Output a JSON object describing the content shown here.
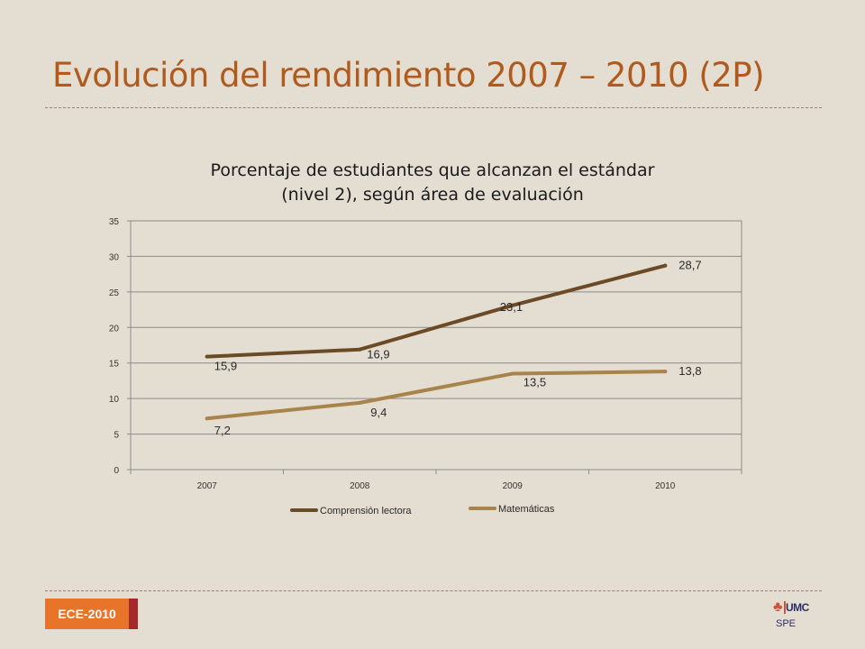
{
  "slide": {
    "title": "Evolución del rendimiento 2007 – 2010 (2P)",
    "badge": "ECE-2010",
    "logo_text": "UMC",
    "logo_sub": "SPE"
  },
  "colors": {
    "title": "#b05a1e",
    "series": [
      "#6b4a26",
      "#a8834a"
    ],
    "badge_bg": "#e8742a",
    "badge_edge": "#a5282a"
  },
  "chart_data": {
    "type": "line",
    "title": "Porcentaje de estudiantes que alcanzan el estándar (nivel 2), según área de evaluación",
    "title_lines": [
      "Porcentaje de estudiantes que alcanzan el estándar",
      "(nivel 2), según área de evaluación"
    ],
    "categories": [
      "2007",
      "2008",
      "2009",
      "2010"
    ],
    "series": [
      {
        "name": "Comprensión lectora",
        "values": [
          15.9,
          16.9,
          23.1,
          28.7
        ],
        "labels": [
          "15,9",
          "16,9",
          "23,1",
          "28,7"
        ]
      },
      {
        "name": "Matemáticas",
        "values": [
          7.2,
          9.4,
          13.5,
          13.8
        ],
        "labels": [
          "7,2",
          "9,4",
          "13,5",
          "13,8"
        ]
      }
    ],
    "ylim": [
      0,
      35
    ],
    "yticks": [
      "0",
      "5",
      "10",
      "15",
      "20",
      "25",
      "30",
      "35"
    ],
    "grid": true,
    "legend_position": "bottom"
  }
}
